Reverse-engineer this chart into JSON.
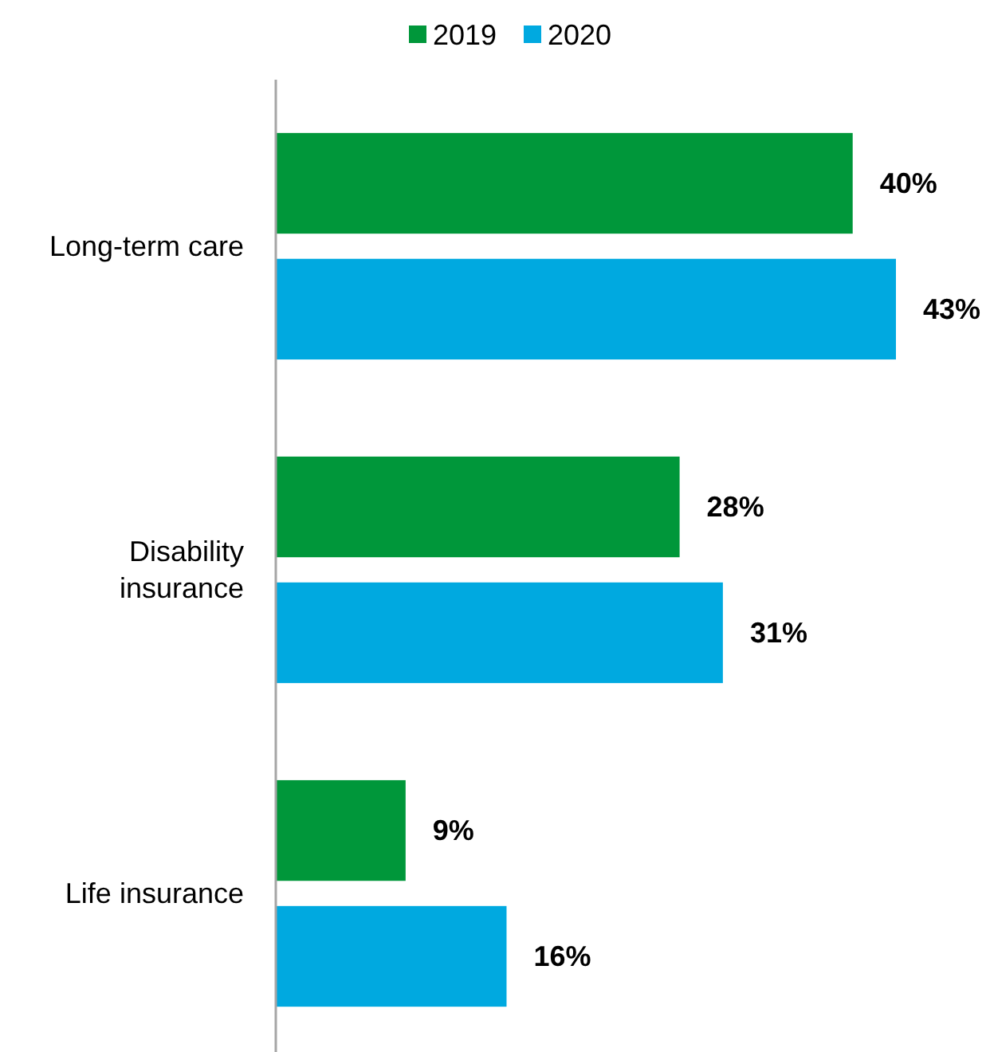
{
  "chart_data": {
    "type": "bar",
    "orientation": "horizontal",
    "categories": [
      "Long-term care",
      "Disability insurance",
      "Life insurance"
    ],
    "series": [
      {
        "name": "2019",
        "color": "#00973a",
        "values": [
          40,
          28,
          9
        ],
        "value_labels": [
          "40%",
          "28%",
          "9%"
        ]
      },
      {
        "name": "2020",
        "color": "#00a9e0",
        "values": [
          43,
          31,
          16
        ],
        "value_labels": [
          "43%",
          "31%",
          "16%"
        ]
      }
    ],
    "legend": "top"
  }
}
